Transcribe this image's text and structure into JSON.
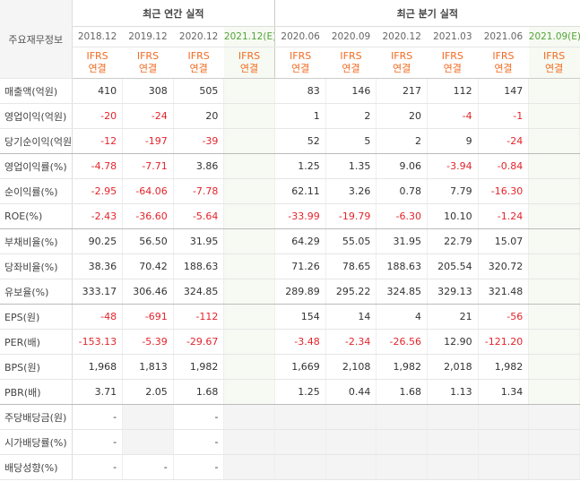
{
  "table": {
    "corner": "주요재무정보",
    "groups": [
      "최근 연간 실적",
      "최근 분기 실적"
    ],
    "periods": [
      "2018.12",
      "2019.12",
      "2020.12",
      "2021.12(E)",
      "2020.06",
      "2020.09",
      "2020.12",
      "2021.03",
      "2021.06",
      "2021.09(E)"
    ],
    "basis": [
      "IFRS\n연결",
      "IFRS\n연결",
      "IFRS\n연결",
      "IFRS\n연결",
      "IFRS\n연결",
      "IFRS\n연결",
      "IFRS\n연결",
      "IFRS\n연결",
      "IFRS\n연결",
      "IFRS\n연결"
    ],
    "rows": [
      {
        "label": "매출액(억원)",
        "values": [
          "410",
          "308",
          "505",
          null,
          "83",
          "146",
          "217",
          "112",
          "147",
          null
        ]
      },
      {
        "label": "영업이익(억원)",
        "values": [
          "-20",
          "-24",
          "20",
          null,
          "1",
          "2",
          "20",
          "-4",
          "-1",
          null
        ]
      },
      {
        "label": "당기순이익(억원)",
        "values": [
          "-12",
          "-197",
          "-39",
          null,
          "52",
          "5",
          "2",
          "9",
          "-24",
          null
        ]
      },
      {
        "label": "영업이익률(%)",
        "values": [
          "-4.78",
          "-7.71",
          "3.86",
          null,
          "1.25",
          "1.35",
          "9.06",
          "-3.94",
          "-0.84",
          null
        ]
      },
      {
        "label": "순이익률(%)",
        "values": [
          "-2.95",
          "-64.06",
          "-7.78",
          null,
          "62.11",
          "3.26",
          "0.78",
          "7.79",
          "-16.30",
          null
        ]
      },
      {
        "label": "ROE(%)",
        "values": [
          "-2.43",
          "-36.60",
          "-5.64",
          null,
          "-33.99",
          "-19.79",
          "-6.30",
          "10.10",
          "-1.24",
          null
        ]
      },
      {
        "label": "부채비율(%)",
        "values": [
          "90.25",
          "56.50",
          "31.95",
          null,
          "64.29",
          "55.05",
          "31.95",
          "22.79",
          "15.07",
          null
        ]
      },
      {
        "label": "당좌비율(%)",
        "values": [
          "38.36",
          "70.42",
          "188.63",
          null,
          "71.26",
          "78.65",
          "188.63",
          "205.54",
          "320.72",
          null
        ]
      },
      {
        "label": "유보율(%)",
        "values": [
          "333.17",
          "306.46",
          "324.85",
          null,
          "289.89",
          "295.22",
          "324.85",
          "329.13",
          "321.48",
          null
        ]
      },
      {
        "label": "EPS(원)",
        "values": [
          "-48",
          "-691",
          "-112",
          null,
          "154",
          "14",
          "4",
          "21",
          "-56",
          null
        ]
      },
      {
        "label": "PER(배)",
        "values": [
          "-153.13",
          "-5.39",
          "-29.67",
          null,
          "-3.48",
          "-2.34",
          "-26.56",
          "12.90",
          "-121.20",
          null
        ]
      },
      {
        "label": "BPS(원)",
        "values": [
          "1,968",
          "1,813",
          "1,982",
          null,
          "1,669",
          "2,108",
          "1,982",
          "2,018",
          "1,982",
          null
        ]
      },
      {
        "label": "PBR(배)",
        "values": [
          "3.71",
          "2.05",
          "1.68",
          null,
          "1.25",
          "0.44",
          "1.68",
          "1.13",
          "1.34",
          null
        ]
      },
      {
        "label": "주당배당금(원)",
        "values": [
          "-",
          null,
          "-",
          null,
          null,
          null,
          null,
          null,
          null,
          null
        ]
      },
      {
        "label": "시가배당률(%)",
        "values": [
          "-",
          null,
          "-",
          null,
          null,
          null,
          null,
          null,
          null,
          null
        ]
      },
      {
        "label": "배당성향(%)",
        "values": [
          "-",
          "-",
          "-",
          null,
          null,
          null,
          null,
          null,
          null,
          null
        ]
      }
    ]
  }
}
